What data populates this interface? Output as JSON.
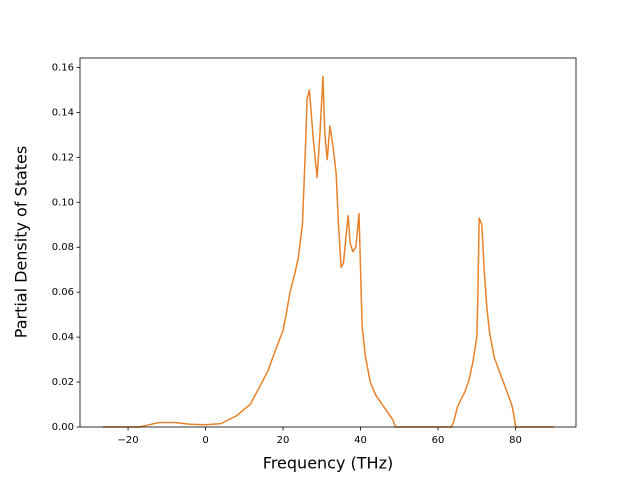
{
  "chart_data": {
    "type": "line",
    "xlabel": "Frequency (THz)",
    "ylabel": "Partial Density of States",
    "xlim": [
      -32.4,
      95.6
    ],
    "ylim": [
      0,
      0.1642
    ],
    "xticks": [
      {
        "value": -20,
        "label": "−20"
      },
      0,
      20,
      40,
      60,
      80
    ],
    "yticks": [
      {
        "value": 0,
        "label": "0.00"
      },
      {
        "value": 0.02,
        "label": "0.02"
      },
      {
        "value": 0.04,
        "label": "0.04"
      },
      {
        "value": 0.06,
        "label": "0.06"
      },
      {
        "value": 0.08,
        "label": "0.08"
      },
      {
        "value": 0.1,
        "label": "0.10"
      },
      {
        "value": 0.12,
        "label": "0.12"
      },
      {
        "value": 0.14,
        "label": "0.14"
      },
      {
        "value": 0.16,
        "label": "0.16"
      }
    ],
    "grid": false,
    "x": [
      -26.5,
      -17,
      -15,
      -12,
      -8,
      -4,
      0,
      4,
      8,
      11.5,
      14,
      16.1,
      18,
      20,
      20.8,
      21.8,
      23,
      23.9,
      25,
      25.8,
      26.2,
      26.8,
      27.8,
      28.8,
      29.5,
      30.3,
      30.8,
      31.4,
      32.1,
      32.8,
      33.7,
      34.3,
      35,
      35.6,
      36.3,
      36.8,
      37.3,
      38,
      38.8,
      39.6,
      40,
      40.4,
      41.2,
      42.5,
      44,
      46,
      48.4,
      49,
      63.4,
      64,
      65,
      67,
      68,
      69,
      70,
      70.3,
      70.6,
      71.3,
      71.9,
      72.6,
      73.3,
      74.5,
      76,
      77.5,
      79,
      79.6,
      80,
      90
    ],
    "series": [
      {
        "color": "#e8822a",
        "values": [
          0,
          0,
          0.0008,
          0.002,
          0.002,
          0.0012,
          0.001,
          0.0015,
          0.005,
          0.01,
          0.018,
          0.025,
          0.034,
          0.043,
          0.05,
          0.06,
          0.068,
          0.075,
          0.09,
          0.125,
          0.146,
          0.15,
          0.128,
          0.111,
          0.13,
          0.156,
          0.13,
          0.119,
          0.134,
          0.126,
          0.113,
          0.09,
          0.071,
          0.073,
          0.086,
          0.094,
          0.082,
          0.078,
          0.08,
          0.095,
          0.07,
          0.045,
          0.032,
          0.02,
          0.014,
          0.009,
          0.003,
          0,
          0,
          0.002,
          0.009,
          0.016,
          0.021,
          0.029,
          0.04,
          0.06,
          0.093,
          0.09,
          0.07,
          0.053,
          0.042,
          0.031,
          0.024,
          0.017,
          0.01,
          0.005,
          0,
          0
        ]
      }
    ]
  }
}
